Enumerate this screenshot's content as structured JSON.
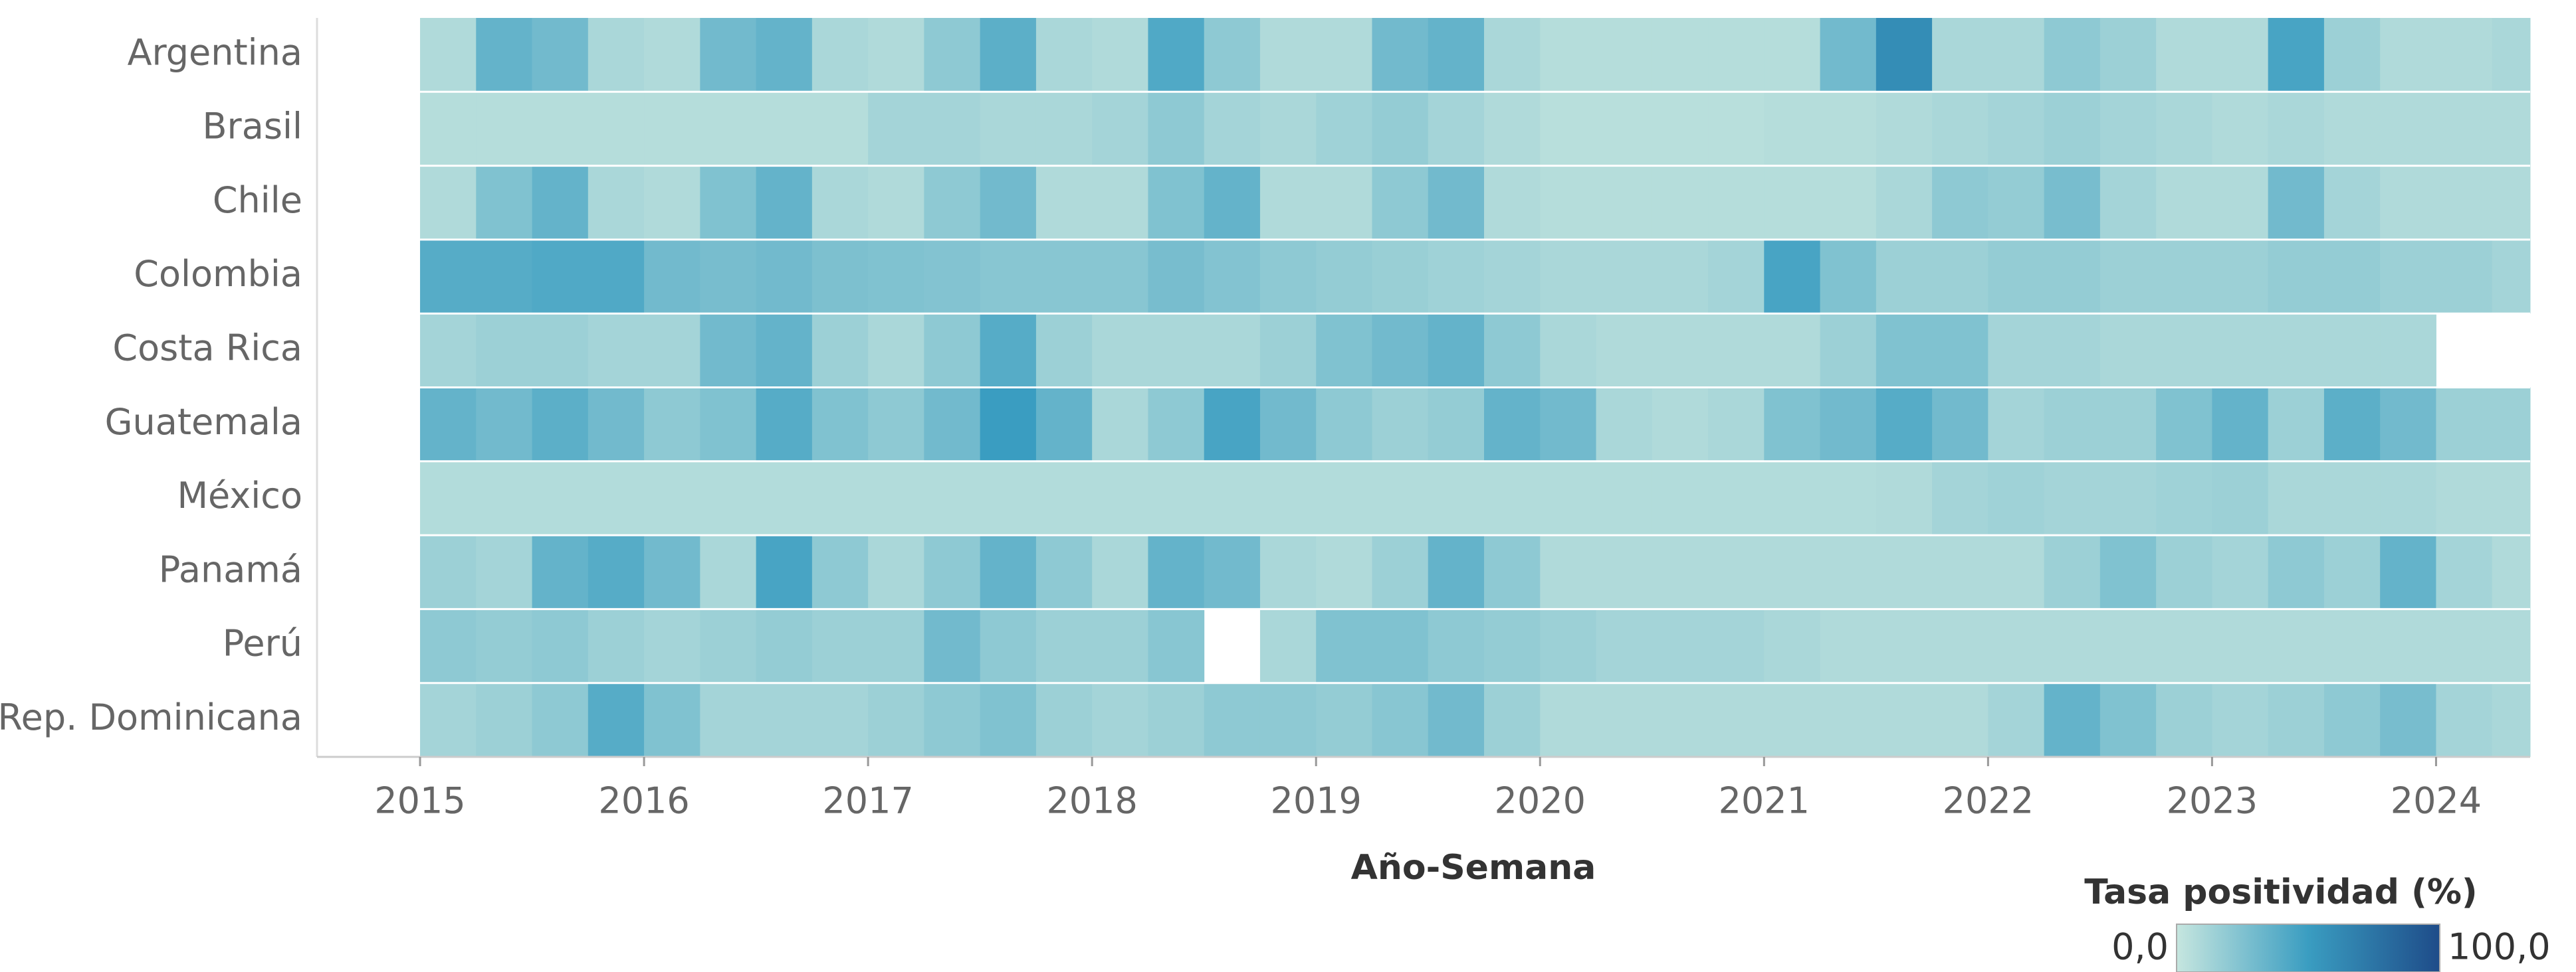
{
  "chart_data": {
    "type": "heatmap",
    "xlabel": "Año-Semana",
    "legend_title": "Tasa positividad (%)",
    "y": [
      "Argentina",
      "Brasil",
      "Chile",
      "Colombia",
      "Costa Rica",
      "Guatemala",
      "México",
      "Panamá",
      "Perú",
      "Rep. Dominicana"
    ],
    "x": [
      2015,
      2015.25,
      2015.5,
      2015.75,
      2016,
      2016.25,
      2016.5,
      2016.75,
      2017,
      2017.25,
      2017.5,
      2017.75,
      2018,
      2018.25,
      2018.5,
      2018.75,
      2019,
      2019.25,
      2019.5,
      2019.75,
      2020,
      2020.25,
      2020.5,
      2020.75,
      2021,
      2021.25,
      2021.5,
      2021.75,
      2022,
      2022.25,
      2022.5,
      2022.75,
      2023,
      2023.25,
      2023.5,
      2023.75,
      2024,
      2024.25
    ],
    "values": [
      [
        8,
        35,
        30,
        10,
        8,
        30,
        35,
        10,
        8,
        20,
        38,
        10,
        8,
        42,
        20,
        8,
        8,
        30,
        35,
        10,
        6,
        6,
        6,
        6,
        6,
        30,
        60,
        10,
        10,
        20,
        15,
        8,
        8,
        45,
        15,
        8,
        8,
        10
      ],
      [
        6,
        6,
        6,
        6,
        6,
        6,
        6,
        6,
        12,
        12,
        10,
        10,
        12,
        20,
        12,
        10,
        14,
        18,
        12,
        8,
        5,
        5,
        5,
        5,
        6,
        6,
        8,
        10,
        12,
        15,
        12,
        10,
        8,
        10,
        8,
        8,
        8,
        8
      ],
      [
        8,
        25,
        35,
        10,
        8,
        25,
        35,
        10,
        8,
        20,
        30,
        8,
        8,
        25,
        35,
        8,
        8,
        20,
        30,
        8,
        6,
        6,
        6,
        6,
        6,
        6,
        10,
        20,
        18,
        28,
        12,
        8,
        8,
        30,
        12,
        8,
        8,
        8
      ],
      [
        40,
        40,
        42,
        42,
        30,
        28,
        30,
        26,
        25,
        24,
        22,
        22,
        22,
        28,
        24,
        20,
        18,
        16,
        14,
        12,
        10,
        10,
        10,
        12,
        45,
        25,
        15,
        15,
        18,
        18,
        15,
        15,
        15,
        18,
        18,
        15,
        15,
        12
      ],
      [
        12,
        15,
        15,
        12,
        12,
        30,
        35,
        15,
        10,
        20,
        40,
        15,
        10,
        10,
        10,
        15,
        25,
        30,
        35,
        20,
        10,
        8,
        8,
        8,
        8,
        15,
        25,
        25,
        12,
        12,
        10,
        10,
        10,
        10,
        10,
        10,
        null,
        null
      ],
      [
        35,
        30,
        38,
        30,
        20,
        25,
        40,
        25,
        20,
        30,
        50,
        35,
        10,
        20,
        45,
        30,
        20,
        15,
        18,
        35,
        30,
        10,
        8,
        10,
        25,
        30,
        40,
        30,
        12,
        15,
        15,
        25,
        35,
        15,
        38,
        30,
        15,
        15
      ],
      [
        7,
        7,
        7,
        7,
        7,
        7,
        7,
        7,
        7,
        7,
        7,
        7,
        7,
        7,
        7,
        7,
        7,
        7,
        7,
        7,
        7,
        7,
        7,
        7,
        7,
        7,
        8,
        12,
        14,
        12,
        12,
        14,
        15,
        10,
        10,
        10,
        8,
        8
      ],
      [
        15,
        12,
        35,
        40,
        30,
        10,
        45,
        20,
        10,
        20,
        35,
        20,
        10,
        35,
        30,
        10,
        8,
        15,
        35,
        20,
        8,
        8,
        8,
        8,
        8,
        8,
        8,
        8,
        8,
        15,
        25,
        15,
        12,
        20,
        15,
        35,
        12,
        8
      ],
      [
        20,
        18,
        20,
        15,
        12,
        15,
        18,
        15,
        15,
        30,
        20,
        15,
        15,
        22,
        null,
        10,
        25,
        25,
        20,
        18,
        15,
        12,
        12,
        12,
        10,
        8,
        8,
        8,
        8,
        8,
        8,
        8,
        8,
        8,
        8,
        8,
        8,
        8
      ],
      [
        12,
        15,
        20,
        40,
        25,
        12,
        12,
        12,
        15,
        20,
        25,
        15,
        12,
        15,
        20,
        20,
        18,
        22,
        30,
        15,
        8,
        8,
        8,
        8,
        8,
        8,
        8,
        8,
        12,
        35,
        25,
        15,
        12,
        15,
        20,
        28,
        12,
        10
      ]
    ],
    "xlim": [
      2014.54,
      2024.42
    ],
    "xticks": [
      2015,
      2016,
      2017,
      2018,
      2019,
      2020,
      2021,
      2022,
      2023,
      2024
    ],
    "colorlim": [
      {
        "value": 0,
        "label": "0,0"
      },
      {
        "value": 100,
        "label": "100,0"
      }
    ],
    "colors": [
      "#c6e6df",
      "#3a9dc1",
      "#1e4c89"
    ]
  }
}
